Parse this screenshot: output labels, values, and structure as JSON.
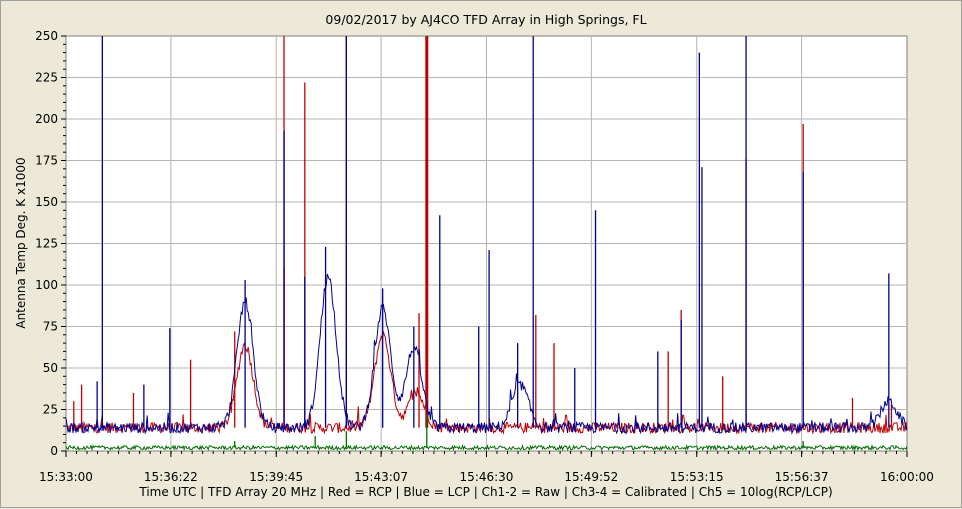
{
  "chart_data": {
    "type": "line",
    "title": "09/02/2017  by  AJ4CO TFD Array  in  High Springs, FL",
    "xlabel": "Time UTC | TFD Array 20 MHz | Red = RCP | Blue = LCP | Ch1-2 = Raw | Ch3-4 = Calibrated | Ch5 = 10log(RCP/LCP)",
    "ylabel": "Antenna Temp Deg. K x1000",
    "xlim": [
      "15:33:00",
      "16:00:00"
    ],
    "ylim": [
      0,
      250
    ],
    "x_ticks": [
      "15:33:00",
      "15:36:22",
      "15:39:45",
      "15:43:07",
      "15:46:30",
      "15:49:52",
      "15:53:15",
      "15:56:37",
      "16:00:00"
    ],
    "y_ticks": [
      "0",
      "25",
      "50",
      "75",
      "100",
      "125",
      "150",
      "175",
      "200",
      "225",
      "250"
    ],
    "grid": true,
    "series": [
      {
        "name": "RCP",
        "color": "#c00000",
        "baseline": 14,
        "peaks": [
          {
            "t": "15:33:15",
            "v": 30
          },
          {
            "t": "15:33:30",
            "v": 40
          },
          {
            "t": "15:35:10",
            "v": 35
          },
          {
            "t": "15:37:00",
            "v": 55
          },
          {
            "t": "15:38:25",
            "v": 72
          },
          {
            "t": "15:40:00",
            "v": 110
          },
          {
            "t": "15:40:00",
            "v": 250
          },
          {
            "t": "15:40:40",
            "v": 222
          },
          {
            "t": "15:42:00",
            "v": 250
          },
          {
            "t": "15:44:20",
            "v": 83
          },
          {
            "t": "15:44:35",
            "v": 250
          },
          {
            "t": "15:48:05",
            "v": 82
          },
          {
            "t": "15:48:40",
            "v": 65
          },
          {
            "t": "15:52:20",
            "v": 60
          },
          {
            "t": "15:52:45",
            "v": 85
          },
          {
            "t": "15:54:05",
            "v": 45
          },
          {
            "t": "15:54:50",
            "v": 176
          },
          {
            "t": "15:56:40",
            "v": 197
          },
          {
            "t": "15:58:15",
            "v": 32
          },
          {
            "t": "15:59:30",
            "v": 28
          }
        ],
        "humps": [
          {
            "t": "15:38:45",
            "v": 64
          },
          {
            "t": "15:43:10",
            "v": 70
          },
          {
            "t": "15:44:15",
            "v": 35
          }
        ]
      },
      {
        "name": "LCP",
        "color": "#000090",
        "baseline": 14,
        "peaks": [
          {
            "t": "15:34:10",
            "v": 250
          },
          {
            "t": "15:34:00",
            "v": 42
          },
          {
            "t": "15:35:30",
            "v": 40
          },
          {
            "t": "15:36:20",
            "v": 74
          },
          {
            "t": "15:38:45",
            "v": 103
          },
          {
            "t": "15:40:00",
            "v": 193
          },
          {
            "t": "15:40:40",
            "v": 105
          },
          {
            "t": "15:41:20",
            "v": 123
          },
          {
            "t": "15:42:00",
            "v": 250
          },
          {
            "t": "15:43:10",
            "v": 98
          },
          {
            "t": "15:44:10",
            "v": 75
          },
          {
            "t": "15:45:00",
            "v": 142
          },
          {
            "t": "15:46:15",
            "v": 75
          },
          {
            "t": "15:46:35",
            "v": 121
          },
          {
            "t": "15:47:30",
            "v": 65
          },
          {
            "t": "15:48:00",
            "v": 250
          },
          {
            "t": "15:49:20",
            "v": 50
          },
          {
            "t": "15:50:00",
            "v": 145
          },
          {
            "t": "15:52:00",
            "v": 60
          },
          {
            "t": "15:52:45",
            "v": 79
          },
          {
            "t": "15:53:20",
            "v": 240
          },
          {
            "t": "15:53:25",
            "v": 171
          },
          {
            "t": "15:54:50",
            "v": 250
          },
          {
            "t": "15:56:40",
            "v": 168
          },
          {
            "t": "15:59:25",
            "v": 107
          }
        ],
        "humps": [
          {
            "t": "15:38:45",
            "v": 90
          },
          {
            "t": "15:41:25",
            "v": 105
          },
          {
            "t": "15:43:10",
            "v": 86
          },
          {
            "t": "15:44:10",
            "v": 62
          },
          {
            "t": "15:47:35",
            "v": 40
          },
          {
            "t": "15:59:25",
            "v": 30
          }
        ]
      },
      {
        "name": "Ch5",
        "color": "#007000",
        "baseline": 2,
        "peaks": [
          {
            "t": "15:38:25",
            "v": 6
          },
          {
            "t": "15:41:00",
            "v": 9
          },
          {
            "t": "15:42:00",
            "v": 12
          },
          {
            "t": "15:44:35",
            "v": 22
          },
          {
            "t": "15:56:40",
            "v": 6
          }
        ],
        "humps": []
      }
    ]
  }
}
